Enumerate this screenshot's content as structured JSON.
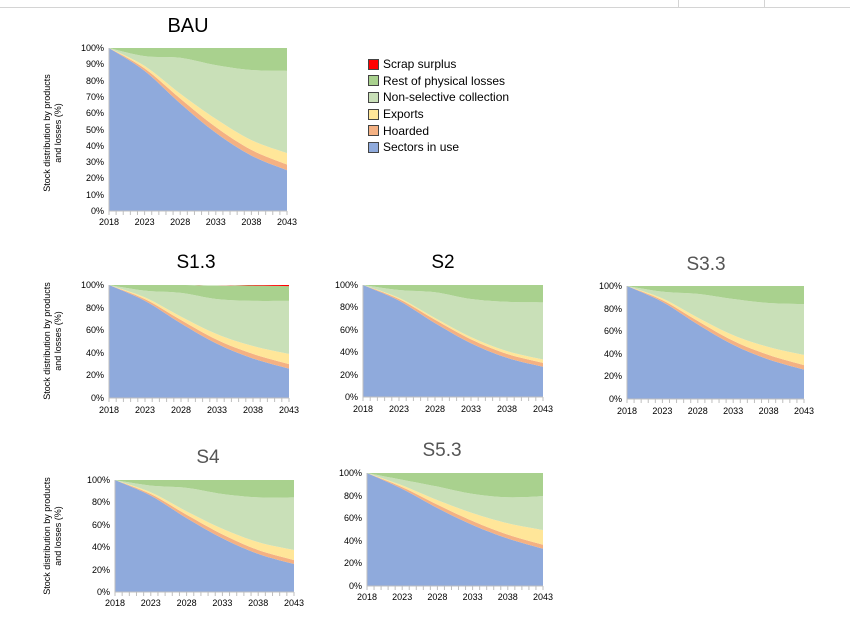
{
  "colors": {
    "sectors_in_use": "#8faadc",
    "hoarded": "#f4b183",
    "exports": "#ffe699",
    "non_selective_collection": "#c9e0b8",
    "rest_of_physical_losses": "#a9d18e",
    "scrap_surplus": "#ff0000"
  },
  "legend": {
    "items": [
      {
        "label": "Scrap surplus",
        "color": "#ff0000"
      },
      {
        "label": "Rest of physical losses",
        "color": "#a9d18e"
      },
      {
        "label": "Non-selective collection",
        "color": "#c9e0b8"
      },
      {
        "label": "Exports",
        "color": "#ffe699"
      },
      {
        "label": "Hoarded",
        "color": "#f4b183"
      },
      {
        "label": "Sectors in use",
        "color": "#8faadc"
      }
    ]
  },
  "ylabels": {
    "bau": "Stock distribution by products and losses (%)",
    "s13": "Stock distribution by products and losses (%)",
    "s4": "Stock distribution by products and losses (%)"
  },
  "chart_data": [
    {
      "title": "BAU",
      "type": "area",
      "stacked": true,
      "x": [
        2018,
        2023,
        2028,
        2033,
        2038,
        2043
      ],
      "yticks": [
        "0%",
        "10%",
        "20%",
        "30%",
        "40%",
        "50%",
        "60%",
        "70%",
        "80%",
        "90%",
        "100%"
      ],
      "ylim": [
        0,
        100
      ],
      "series": [
        {
          "name": "Sectors in use",
          "values": [
            100,
            86,
            66,
            48,
            34,
            25
          ]
        },
        {
          "name": "Hoarded",
          "values": [
            0,
            1.5,
            3,
            3.5,
            3.5,
            3.5
          ]
        },
        {
          "name": "Exports",
          "values": [
            0,
            1.5,
            3,
            5,
            6,
            7
          ]
        },
        {
          "name": "Non-selective collection",
          "values": [
            0,
            6,
            22,
            33,
            43,
            50.5
          ]
        },
        {
          "name": "Rest of physical losses",
          "values": [
            0,
            5,
            6,
            10.5,
            13.5,
            14
          ]
        },
        {
          "name": "Scrap surplus",
          "values": [
            0,
            0,
            0,
            0,
            0,
            0
          ]
        }
      ]
    },
    {
      "title": "S1.3",
      "type": "area",
      "stacked": true,
      "x": [
        2018,
        2023,
        2028,
        2033,
        2038,
        2043
      ],
      "yticks": [
        "0%",
        "20%",
        "40%",
        "60%",
        "80%",
        "100%"
      ],
      "ylim": [
        0,
        100
      ],
      "series": [
        {
          "name": "Sectors in use",
          "values": [
            100,
            86,
            66,
            48,
            35,
            26
          ]
        },
        {
          "name": "Hoarded",
          "values": [
            0,
            1.5,
            3,
            3.5,
            4,
            4
          ]
        },
        {
          "name": "Exports",
          "values": [
            0,
            1.5,
            3,
            5,
            7,
            9
          ]
        },
        {
          "name": "Non-selective collection",
          "values": [
            0,
            6,
            21,
            31,
            40,
            47
          ]
        },
        {
          "name": "Rest of physical losses",
          "values": [
            0,
            5,
            7,
            12,
            13.5,
            13
          ]
        },
        {
          "name": "Scrap surplus",
          "values": [
            0,
            0,
            0,
            0,
            0.5,
            1
          ]
        }
      ]
    },
    {
      "title": "S2",
      "type": "area",
      "stacked": true,
      "x": [
        2018,
        2023,
        2028,
        2033,
        2038,
        2043
      ],
      "yticks": [
        "0%",
        "20%",
        "40%",
        "60%",
        "80%",
        "100%"
      ],
      "ylim": [
        0,
        100
      ],
      "series": [
        {
          "name": "Sectors in use",
          "values": [
            100,
            86,
            66,
            48,
            35,
            27
          ]
        },
        {
          "name": "Hoarded",
          "values": [
            0,
            1.5,
            3,
            3.5,
            3.5,
            3.5
          ]
        },
        {
          "name": "Exports",
          "values": [
            0,
            1,
            1.5,
            2,
            2.5,
            3
          ]
        },
        {
          "name": "Non-selective collection",
          "values": [
            0,
            7,
            23,
            34,
            44,
            51
          ]
        },
        {
          "name": "Rest of physical losses",
          "values": [
            0,
            4.5,
            6.5,
            12.5,
            15,
            15.5
          ]
        },
        {
          "name": "Scrap surplus",
          "values": [
            0,
            0,
            0,
            0,
            0,
            0
          ]
        }
      ]
    },
    {
      "title": "S3.3",
      "type": "area",
      "stacked": true,
      "x": [
        2018,
        2023,
        2028,
        2033,
        2038,
        2043
      ],
      "yticks": [
        "0%",
        "20%",
        "40%",
        "60%",
        "80%",
        "100%"
      ],
      "ylim": [
        0,
        100
      ],
      "series": [
        {
          "name": "Sectors in use",
          "values": [
            100,
            86,
            66,
            48,
            35,
            26
          ]
        },
        {
          "name": "Hoarded",
          "values": [
            0,
            1.5,
            3,
            3.5,
            4,
            4
          ]
        },
        {
          "name": "Exports",
          "values": [
            0,
            1.5,
            3,
            5,
            7,
            9
          ]
        },
        {
          "name": "Non-selective collection",
          "values": [
            0,
            6,
            21,
            32,
            39,
            45
          ]
        },
        {
          "name": "Rest of physical losses",
          "values": [
            0,
            5,
            7,
            11.5,
            15,
            16
          ]
        },
        {
          "name": "Scrap surplus",
          "values": [
            0,
            0,
            0,
            0,
            0,
            0
          ]
        }
      ]
    },
    {
      "title": "S4",
      "type": "area",
      "stacked": true,
      "x": [
        2018,
        2023,
        2028,
        2033,
        2038,
        2043
      ],
      "yticks": [
        "0%",
        "20%",
        "40%",
        "60%",
        "80%",
        "100%"
      ],
      "ylim": [
        0,
        100
      ],
      "series": [
        {
          "name": "Sectors in use",
          "values": [
            100,
            86,
            66,
            48,
            34,
            25
          ]
        },
        {
          "name": "Hoarded",
          "values": [
            0,
            1.5,
            3,
            3.5,
            3.5,
            3.5
          ]
        },
        {
          "name": "Exports",
          "values": [
            0,
            1.5,
            3,
            5,
            7,
            9
          ]
        },
        {
          "name": "Non-selective collection",
          "values": [
            0,
            6,
            21,
            31,
            40,
            47
          ]
        },
        {
          "name": "Rest of physical losses",
          "values": [
            0,
            5,
            7,
            12.5,
            15.5,
            15.5
          ]
        },
        {
          "name": "Scrap surplus",
          "values": [
            0,
            0,
            0,
            0,
            0,
            0
          ]
        }
      ]
    },
    {
      "title": "S5.3",
      "type": "area",
      "stacked": true,
      "x": [
        2018,
        2023,
        2028,
        2033,
        2038,
        2043
      ],
      "yticks": [
        "0%",
        "20%",
        "40%",
        "60%",
        "80%",
        "100%"
      ],
      "ylim": [
        0,
        100
      ],
      "series": [
        {
          "name": "Sectors in use",
          "values": [
            100,
            86,
            69,
            54,
            42,
            33
          ]
        },
        {
          "name": "Hoarded",
          "values": [
            0,
            1.5,
            3,
            3.5,
            3.5,
            3.5
          ]
        },
        {
          "name": "Exports",
          "values": [
            0,
            1.5,
            4,
            7,
            10,
            13
          ]
        },
        {
          "name": "Non-selective collection",
          "values": [
            0,
            5,
            12,
            17,
            23,
            30
          ]
        },
        {
          "name": "Rest of physical losses",
          "values": [
            0,
            6,
            12,
            18.5,
            21.5,
            20.5
          ]
        },
        {
          "name": "Scrap surplus",
          "values": [
            0,
            0,
            0,
            0,
            0,
            0
          ]
        }
      ]
    }
  ]
}
